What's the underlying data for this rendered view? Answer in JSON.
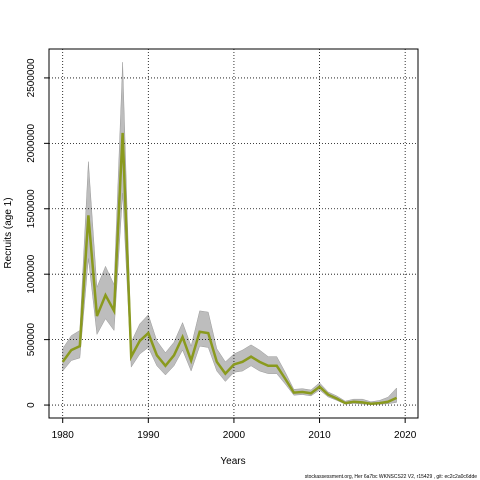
{
  "chart_data": {
    "type": "line",
    "xlabel": "Years",
    "ylabel": "Recruits (age 1)",
    "footer": "stockassessment.org, Her 6a7bc WKNSCS22 V2, r15429 , git: ec2c2a0c6dde",
    "x": [
      1980,
      1981,
      1982,
      1983,
      1984,
      1985,
      1986,
      1987,
      1988,
      1989,
      1990,
      1991,
      1992,
      1993,
      1994,
      1995,
      1996,
      1997,
      1998,
      1999,
      2000,
      2001,
      2002,
      2003,
      2004,
      2005,
      2006,
      2007,
      2008,
      2009,
      2010,
      2011,
      2012,
      2013,
      2014,
      2015,
      2016,
      2017,
      2018,
      2019
    ],
    "values": [
      330000,
      420000,
      450000,
      1450000,
      680000,
      840000,
      720000,
      2080000,
      370000,
      490000,
      550000,
      380000,
      300000,
      380000,
      520000,
      340000,
      560000,
      550000,
      330000,
      240000,
      310000,
      330000,
      370000,
      330000,
      300000,
      300000,
      200000,
      95000,
      100000,
      90000,
      140000,
      80000,
      50000,
      15000,
      25000,
      20000,
      10000,
      15000,
      25000,
      55000
    ],
    "upper": [
      430000,
      530000,
      570000,
      1860000,
      900000,
      1060000,
      920000,
      2620000,
      480000,
      620000,
      690000,
      490000,
      400000,
      480000,
      630000,
      450000,
      720000,
      710000,
      430000,
      330000,
      390000,
      420000,
      460000,
      420000,
      370000,
      370000,
      250000,
      120000,
      125000,
      115000,
      170000,
      100000,
      70000,
      30000,
      45000,
      45000,
      25000,
      35000,
      60000,
      130000
    ],
    "lower": [
      260000,
      340000,
      360000,
      1120000,
      540000,
      660000,
      570000,
      1620000,
      290000,
      390000,
      440000,
      300000,
      230000,
      300000,
      420000,
      260000,
      450000,
      440000,
      260000,
      180000,
      250000,
      260000,
      300000,
      260000,
      240000,
      240000,
      160000,
      75000,
      80000,
      70000,
      115000,
      62000,
      36000,
      7000,
      12000,
      8000,
      3000,
      6000,
      10000,
      20000
    ],
    "color": "#8a9a1e",
    "band_color": "#bdbdbd",
    "xlim": [
      1978.4,
      2021.5
    ],
    "xticks": [
      1980,
      1990,
      2000,
      2010,
      2020
    ],
    "ylim": [
      -99000,
      2721000
    ],
    "yticks": [
      0,
      500000,
      1000000,
      1500000,
      2000000,
      2500000
    ],
    "grid": true
  }
}
